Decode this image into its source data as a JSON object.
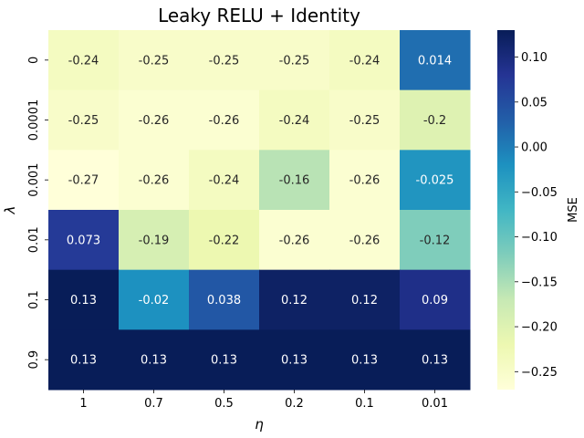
{
  "chart_data": {
    "type": "heatmap",
    "title": "Leaky RELU + Identity",
    "xlabel": "η",
    "ylabel": "λ",
    "x_categories": [
      "1",
      "0.7",
      "0.5",
      "0.2",
      "0.1",
      "0.01"
    ],
    "y_categories": [
      "0",
      "0.0001",
      "0.001",
      "0.01",
      "0.1",
      "0.9"
    ],
    "values": [
      [
        -0.24,
        -0.25,
        -0.25,
        -0.25,
        -0.24,
        0.014
      ],
      [
        -0.25,
        -0.26,
        -0.26,
        -0.24,
        -0.25,
        -0.2
      ],
      [
        -0.27,
        -0.26,
        -0.24,
        -0.16,
        -0.26,
        -0.025
      ],
      [
        0.073,
        -0.19,
        -0.22,
        -0.26,
        -0.26,
        -0.12
      ],
      [
        0.13,
        -0.02,
        0.038,
        0.12,
        0.12,
        0.09
      ],
      [
        0.13,
        0.13,
        0.13,
        0.13,
        0.13,
        0.13
      ]
    ],
    "colorbar": {
      "label": "MSE",
      "min": -0.27,
      "max": 0.13,
      "ticks": [
        "0.10",
        "0.05",
        "0.00",
        "−0.05",
        "−0.10",
        "−0.15",
        "−0.20",
        "−0.25"
      ],
      "tick_values": [
        0.1,
        0.05,
        0.0,
        -0.05,
        -0.1,
        -0.15,
        -0.2,
        -0.25
      ],
      "colormap": "YlGnBu"
    }
  }
}
